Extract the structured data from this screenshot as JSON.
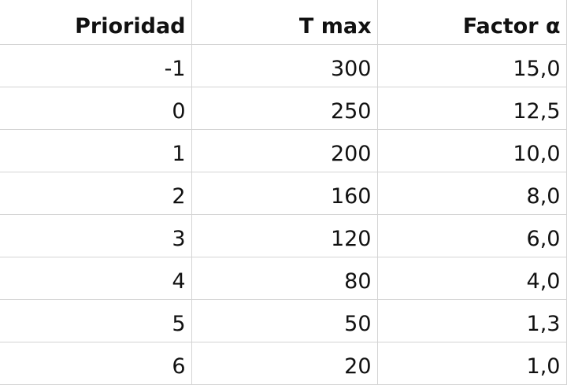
{
  "table": {
    "headers": [
      "Prioridad",
      "T max",
      "Factor α"
    ],
    "rows": [
      [
        "-1",
        "300",
        "15,0"
      ],
      [
        "0",
        "250",
        "12,5"
      ],
      [
        "1",
        "200",
        "10,0"
      ],
      [
        "2",
        "160",
        "8,0"
      ],
      [
        "3",
        "120",
        "6,0"
      ],
      [
        "4",
        "80",
        "4,0"
      ],
      [
        "5",
        "50",
        "1,3"
      ],
      [
        "6",
        "20",
        "1,0"
      ]
    ]
  },
  "colors": {
    "gridline": "#d4d4d4",
    "text": "#111111",
    "background": "#ffffff"
  }
}
